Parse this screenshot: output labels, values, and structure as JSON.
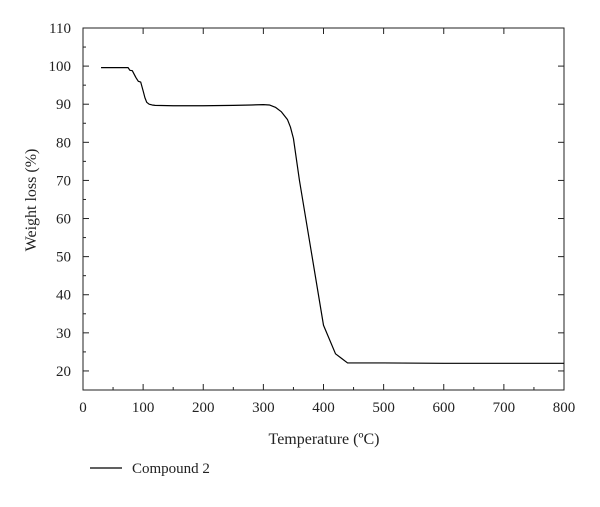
{
  "chart_data": {
    "type": "line",
    "title": "",
    "xlabel": "Temperature (ºC)",
    "ylabel": "Weight loss (%)",
    "xlim": [
      0,
      800
    ],
    "ylim": [
      15,
      110
    ],
    "xticks": [
      0,
      100,
      200,
      300,
      400,
      500,
      600,
      700,
      800
    ],
    "yticks": [
      20,
      30,
      40,
      50,
      60,
      70,
      80,
      90,
      100,
      110
    ],
    "grid": false,
    "legend_position": "bottom-left",
    "series": [
      {
        "name": "Compound 2",
        "color": "#000000",
        "x": [
          30,
          60,
          75,
          78,
          82,
          88,
          92,
          96,
          100,
          103,
          106,
          110,
          115,
          120,
          150,
          200,
          250,
          280,
          300,
          310,
          320,
          330,
          340,
          345,
          350,
          360,
          380,
          400,
          420,
          430,
          440,
          500,
          600,
          700,
          800
        ],
        "y": [
          99.6,
          99.6,
          99.6,
          98.9,
          98.8,
          97.0,
          96.0,
          95.8,
          93.5,
          91.7,
          90.5,
          90.0,
          89.8,
          89.7,
          89.6,
          89.6,
          89.7,
          89.8,
          89.9,
          89.8,
          89.2,
          88.0,
          86.0,
          84.0,
          81.0,
          70.0,
          51.0,
          32.0,
          24.5,
          23.3,
          22.1,
          22.1,
          22.0,
          22.0,
          22.0
        ]
      }
    ]
  }
}
